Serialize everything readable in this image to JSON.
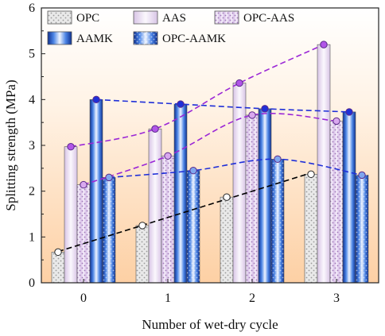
{
  "chart_data": {
    "type": "bar",
    "xlabel": "Number of wet-dry cycle",
    "ylabel": "Splitting strength (MPa)",
    "categories": [
      "0",
      "1",
      "2",
      "3"
    ],
    "ylim": [
      0,
      6
    ],
    "yticks": [
      "0",
      "1",
      "2",
      "3",
      "4",
      "5",
      "6"
    ],
    "legend_position": "top-left",
    "background": "vertical gradient from white (top) to light orange (bottom)",
    "series": [
      {
        "name": "OPC",
        "values": [
          0.67,
          1.25,
          1.87,
          2.37
        ],
        "fill": "#e6e6e6",
        "pattern": "dots",
        "marker": "#ffffff",
        "trend": "#000000"
      },
      {
        "name": "AAS",
        "values": [
          2.97,
          3.36,
          4.36,
          5.2
        ],
        "fill": "#ece2f2",
        "pattern": "none",
        "marker": "#b155e8",
        "trend": "#9b27d6"
      },
      {
        "name": "OPC-AAS",
        "values": [
          2.14,
          2.77,
          3.66,
          3.53
        ],
        "fill": "#e6d7ee",
        "pattern": "dots",
        "marker": "#d9a8ef",
        "trend": "#9b27d6"
      },
      {
        "name": "AAMK",
        "values": [
          4.0,
          3.9,
          3.8,
          3.73
        ],
        "fill": "#2f63c8",
        "pattern": "gradient",
        "marker": "#1f2fd8",
        "trend": "#1f2fd8"
      },
      {
        "name": "OPC-AAMK",
        "values": [
          2.3,
          2.45,
          2.7,
          2.35
        ],
        "fill": "#4f7fd6",
        "pattern": "gradient-dots",
        "marker": "#7fa6ee",
        "trend": "#1f2fd8"
      }
    ]
  }
}
